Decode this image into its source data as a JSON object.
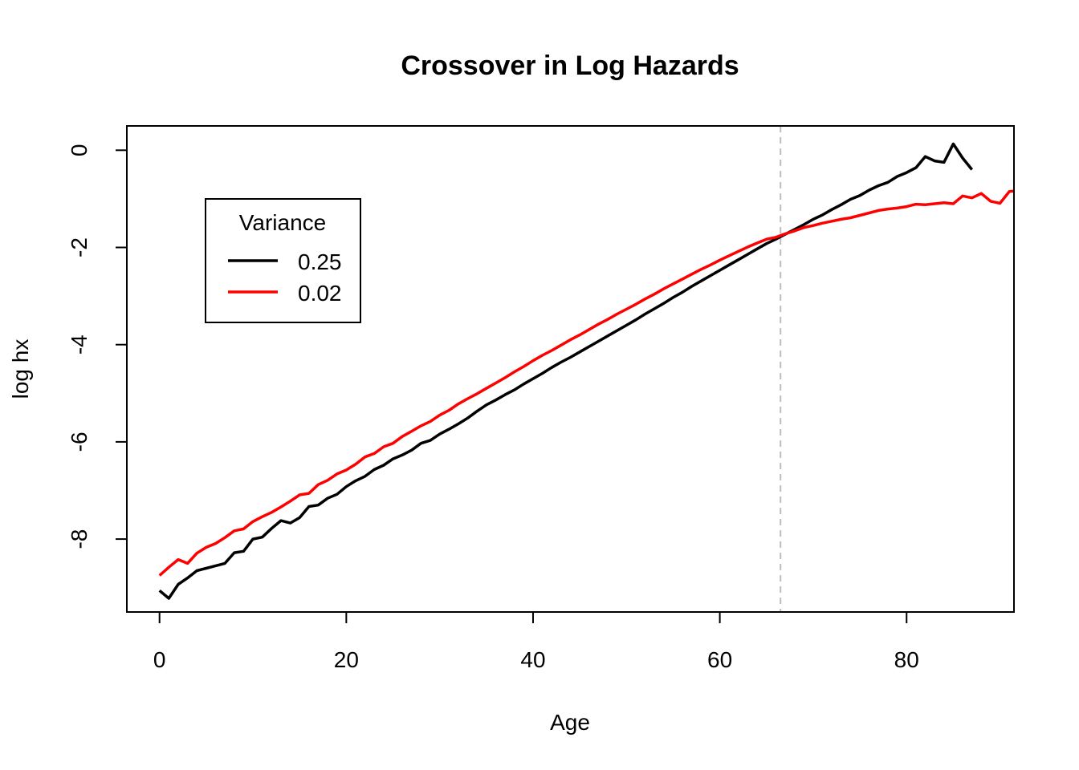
{
  "chart_data": {
    "type": "line",
    "title": "Crossover in Log Hazards",
    "xlabel": "Age",
    "ylabel": "log hx",
    "xlim": [
      -3.5,
      91.5
    ],
    "ylim": [
      -9.5,
      0.5
    ],
    "xticks": [
      0,
      20,
      40,
      60,
      80
    ],
    "yticks": [
      0,
      -2,
      -4,
      -6,
      -8
    ],
    "grid": false,
    "reference_lines": [
      {
        "orientation": "vertical",
        "x": 66.5,
        "style": "dashed",
        "color": "#bdbdbd"
      }
    ],
    "legend": {
      "title": "Variance",
      "position": "top-left"
    },
    "series": [
      {
        "name": "0.25",
        "color": "#000000",
        "points": [
          [
            0,
            -9.06
          ],
          [
            1,
            -9.22
          ],
          [
            2,
            -8.93
          ],
          [
            3,
            -8.8
          ],
          [
            4,
            -8.65
          ],
          [
            5,
            -8.6
          ],
          [
            6,
            -8.55
          ],
          [
            7,
            -8.5
          ],
          [
            8,
            -8.28
          ],
          [
            9,
            -8.25
          ],
          [
            10,
            -8.0
          ],
          [
            11,
            -7.96
          ],
          [
            12,
            -7.78
          ],
          [
            13,
            -7.62
          ],
          [
            14,
            -7.67
          ],
          [
            15,
            -7.56
          ],
          [
            16,
            -7.33
          ],
          [
            17,
            -7.3
          ],
          [
            18,
            -7.16
          ],
          [
            19,
            -7.08
          ],
          [
            20,
            -6.92
          ],
          [
            21,
            -6.8
          ],
          [
            22,
            -6.71
          ],
          [
            23,
            -6.57
          ],
          [
            24,
            -6.48
          ],
          [
            25,
            -6.35
          ],
          [
            26,
            -6.27
          ],
          [
            27,
            -6.17
          ],
          [
            28,
            -6.03
          ],
          [
            29,
            -5.97
          ],
          [
            30,
            -5.84
          ],
          [
            31,
            -5.74
          ],
          [
            32,
            -5.63
          ],
          [
            33,
            -5.51
          ],
          [
            34,
            -5.37
          ],
          [
            35,
            -5.24
          ],
          [
            36,
            -5.14
          ],
          [
            37,
            -5.03
          ],
          [
            38,
            -4.93
          ],
          [
            39,
            -4.81
          ],
          [
            40,
            -4.7
          ],
          [
            41,
            -4.59
          ],
          [
            42,
            -4.47
          ],
          [
            43,
            -4.36
          ],
          [
            44,
            -4.26
          ],
          [
            45,
            -4.15
          ],
          [
            46,
            -4.04
          ],
          [
            47,
            -3.93
          ],
          [
            48,
            -3.82
          ],
          [
            49,
            -3.71
          ],
          [
            50,
            -3.6
          ],
          [
            51,
            -3.49
          ],
          [
            52,
            -3.37
          ],
          [
            53,
            -3.26
          ],
          [
            54,
            -3.15
          ],
          [
            55,
            -3.03
          ],
          [
            56,
            -2.92
          ],
          [
            57,
            -2.8
          ],
          [
            58,
            -2.69
          ],
          [
            59,
            -2.58
          ],
          [
            60,
            -2.47
          ],
          [
            61,
            -2.36
          ],
          [
            62,
            -2.25
          ],
          [
            63,
            -2.14
          ],
          [
            64,
            -2.03
          ],
          [
            65,
            -1.92
          ],
          [
            66,
            -1.83
          ],
          [
            67,
            -1.73
          ],
          [
            68,
            -1.63
          ],
          [
            69,
            -1.53
          ],
          [
            70,
            -1.42
          ],
          [
            71,
            -1.33
          ],
          [
            72,
            -1.22
          ],
          [
            73,
            -1.12
          ],
          [
            74,
            -1.01
          ],
          [
            75,
            -0.93
          ],
          [
            76,
            -0.82
          ],
          [
            77,
            -0.73
          ],
          [
            78,
            -0.66
          ],
          [
            79,
            -0.54
          ],
          [
            80,
            -0.46
          ],
          [
            81,
            -0.36
          ],
          [
            82,
            -0.13
          ],
          [
            83,
            -0.22
          ],
          [
            84,
            -0.25
          ],
          [
            85,
            0.13
          ],
          [
            86,
            -0.16
          ],
          [
            87,
            -0.4
          ]
        ]
      },
      {
        "name": "0.02",
        "color": "#ff0000",
        "points": [
          [
            0,
            -8.75
          ],
          [
            1,
            -8.58
          ],
          [
            2,
            -8.42
          ],
          [
            3,
            -8.5
          ],
          [
            4,
            -8.29
          ],
          [
            5,
            -8.17
          ],
          [
            6,
            -8.09
          ],
          [
            7,
            -7.97
          ],
          [
            8,
            -7.83
          ],
          [
            9,
            -7.79
          ],
          [
            10,
            -7.64
          ],
          [
            11,
            -7.54
          ],
          [
            12,
            -7.45
          ],
          [
            13,
            -7.34
          ],
          [
            14,
            -7.22
          ],
          [
            15,
            -7.09
          ],
          [
            16,
            -7.06
          ],
          [
            17,
            -6.88
          ],
          [
            18,
            -6.79
          ],
          [
            19,
            -6.66
          ],
          [
            20,
            -6.58
          ],
          [
            21,
            -6.46
          ],
          [
            22,
            -6.31
          ],
          [
            23,
            -6.24
          ],
          [
            24,
            -6.1
          ],
          [
            25,
            -6.03
          ],
          [
            26,
            -5.89
          ],
          [
            27,
            -5.78
          ],
          [
            28,
            -5.67
          ],
          [
            29,
            -5.58
          ],
          [
            30,
            -5.45
          ],
          [
            31,
            -5.35
          ],
          [
            32,
            -5.22
          ],
          [
            33,
            -5.11
          ],
          [
            34,
            -5.01
          ],
          [
            35,
            -4.9
          ],
          [
            36,
            -4.79
          ],
          [
            37,
            -4.68
          ],
          [
            38,
            -4.56
          ],
          [
            39,
            -4.45
          ],
          [
            40,
            -4.33
          ],
          [
            41,
            -4.22
          ],
          [
            42,
            -4.12
          ],
          [
            43,
            -4.01
          ],
          [
            44,
            -3.9
          ],
          [
            45,
            -3.8
          ],
          [
            46,
            -3.69
          ],
          [
            47,
            -3.58
          ],
          [
            48,
            -3.48
          ],
          [
            49,
            -3.37
          ],
          [
            50,
            -3.27
          ],
          [
            51,
            -3.17
          ],
          [
            52,
            -3.06
          ],
          [
            53,
            -2.96
          ],
          [
            54,
            -2.85
          ],
          [
            55,
            -2.75
          ],
          [
            56,
            -2.65
          ],
          [
            57,
            -2.55
          ],
          [
            58,
            -2.45
          ],
          [
            59,
            -2.36
          ],
          [
            60,
            -2.26
          ],
          [
            61,
            -2.17
          ],
          [
            62,
            -2.08
          ],
          [
            63,
            -1.99
          ],
          [
            64,
            -1.91
          ],
          [
            65,
            -1.83
          ],
          [
            66,
            -1.79
          ],
          [
            67,
            -1.72
          ],
          [
            68,
            -1.66
          ],
          [
            69,
            -1.59
          ],
          [
            70,
            -1.55
          ],
          [
            71,
            -1.5
          ],
          [
            72,
            -1.46
          ],
          [
            73,
            -1.42
          ],
          [
            74,
            -1.39
          ],
          [
            75,
            -1.34
          ],
          [
            76,
            -1.29
          ],
          [
            77,
            -1.24
          ],
          [
            78,
            -1.21
          ],
          [
            79,
            -1.19
          ],
          [
            80,
            -1.16
          ],
          [
            81,
            -1.11
          ],
          [
            82,
            -1.12
          ],
          [
            83,
            -1.1
          ],
          [
            84,
            -1.08
          ],
          [
            85,
            -1.1
          ],
          [
            86,
            -0.94
          ],
          [
            87,
            -0.98
          ],
          [
            88,
            -0.89
          ],
          [
            89,
            -1.05
          ],
          [
            90,
            -1.09
          ],
          [
            91,
            -0.85
          ],
          [
            92,
            -0.83
          ]
        ]
      }
    ]
  }
}
